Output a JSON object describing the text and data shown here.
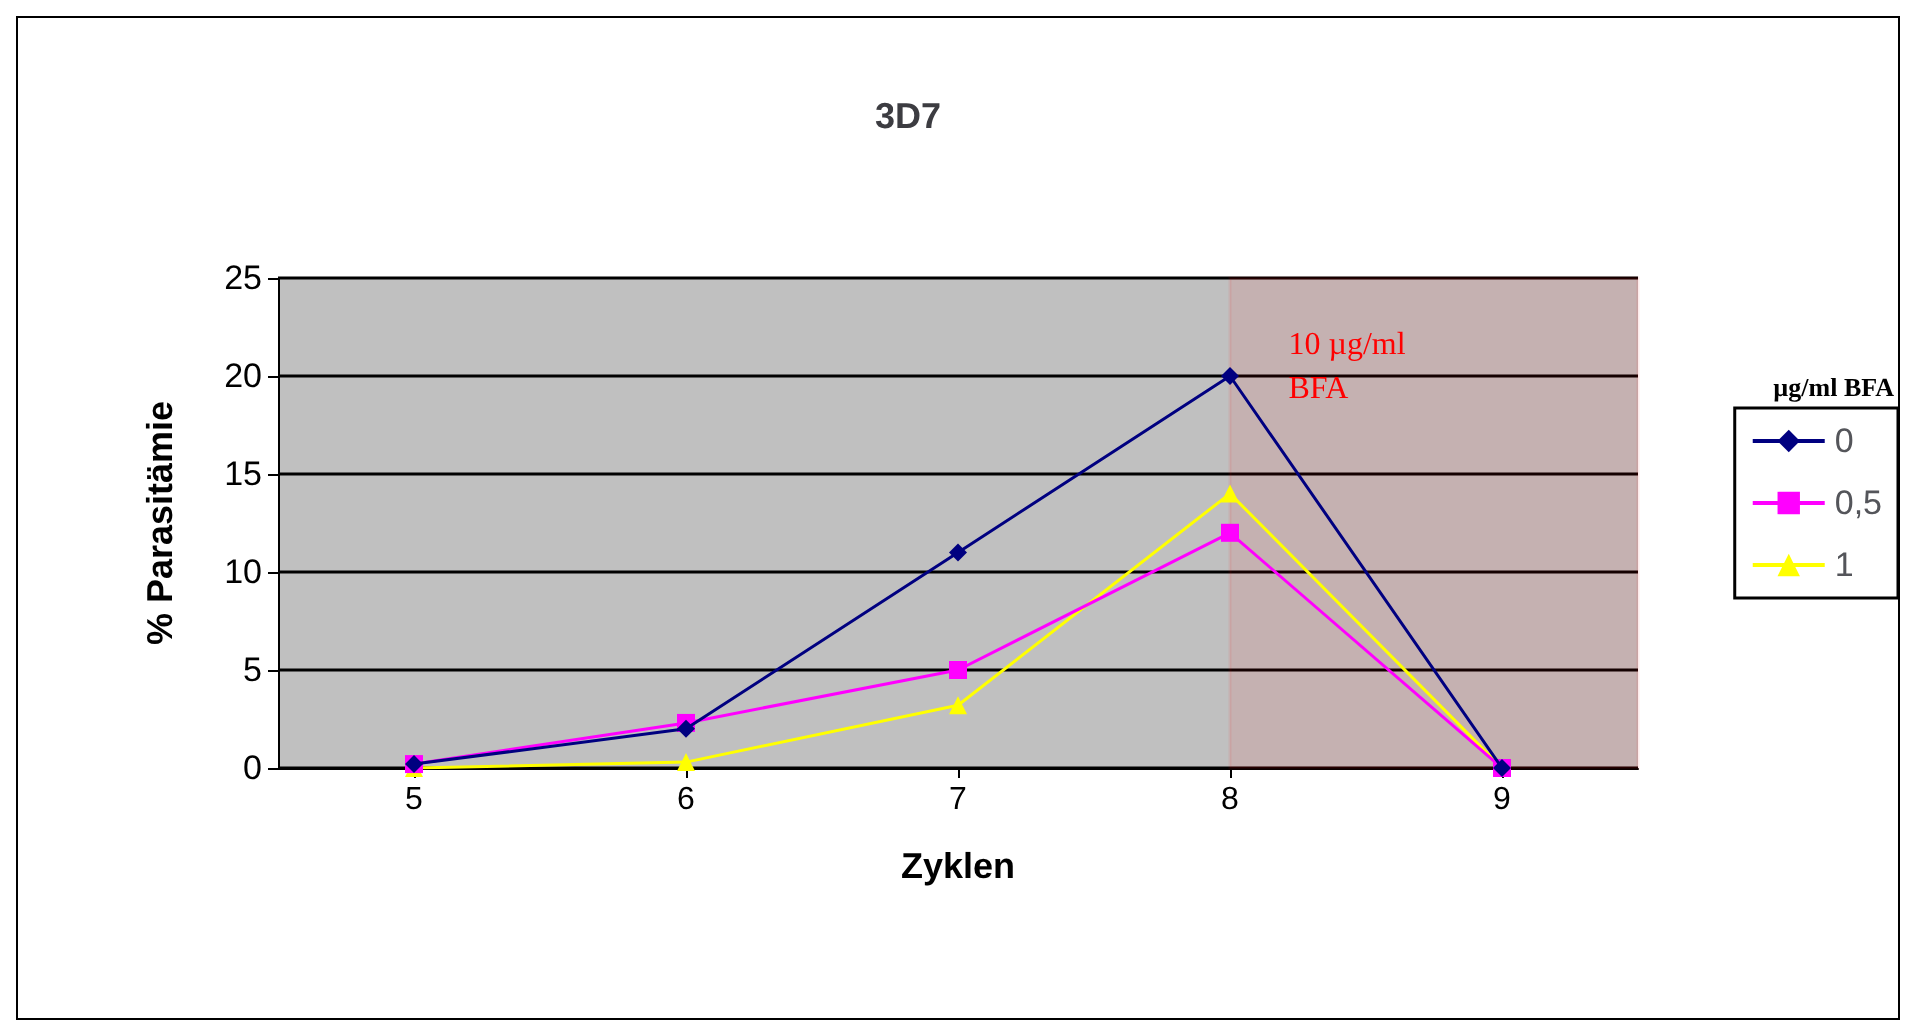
{
  "chart_data": {
    "type": "line",
    "title": "3D7",
    "xlabel": "Zyklen",
    "ylabel": "% Parasitämie",
    "legend_title": "µg/ml BFA",
    "x": [
      5,
      6,
      7,
      8,
      9
    ],
    "xlim": [
      4.5,
      9.5
    ],
    "xticks": [
      5,
      6,
      7,
      8,
      9
    ],
    "ylim": [
      0,
      25
    ],
    "yticks": [
      0,
      5,
      10,
      15,
      20,
      25
    ],
    "grid": "y",
    "legend": "right",
    "series": [
      {
        "name": "0",
        "color": "#000080",
        "marker": "diamond",
        "values": [
          0.2,
          2,
          11,
          20,
          0
        ]
      },
      {
        "name": "0,5",
        "color": "#ff00ff",
        "marker": "square",
        "values": [
          0.2,
          2.3,
          5,
          12,
          0
        ]
      },
      {
        "name": "1",
        "color": "#ffff00",
        "marker": "triangle",
        "values": [
          0,
          0.3,
          3.2,
          14,
          0
        ]
      }
    ],
    "bands": [
      {
        "axis": "x",
        "from": 8,
        "to": 9.5,
        "label": "10 µg/ml\nBFA",
        "color": "#ff0000"
      }
    ]
  }
}
